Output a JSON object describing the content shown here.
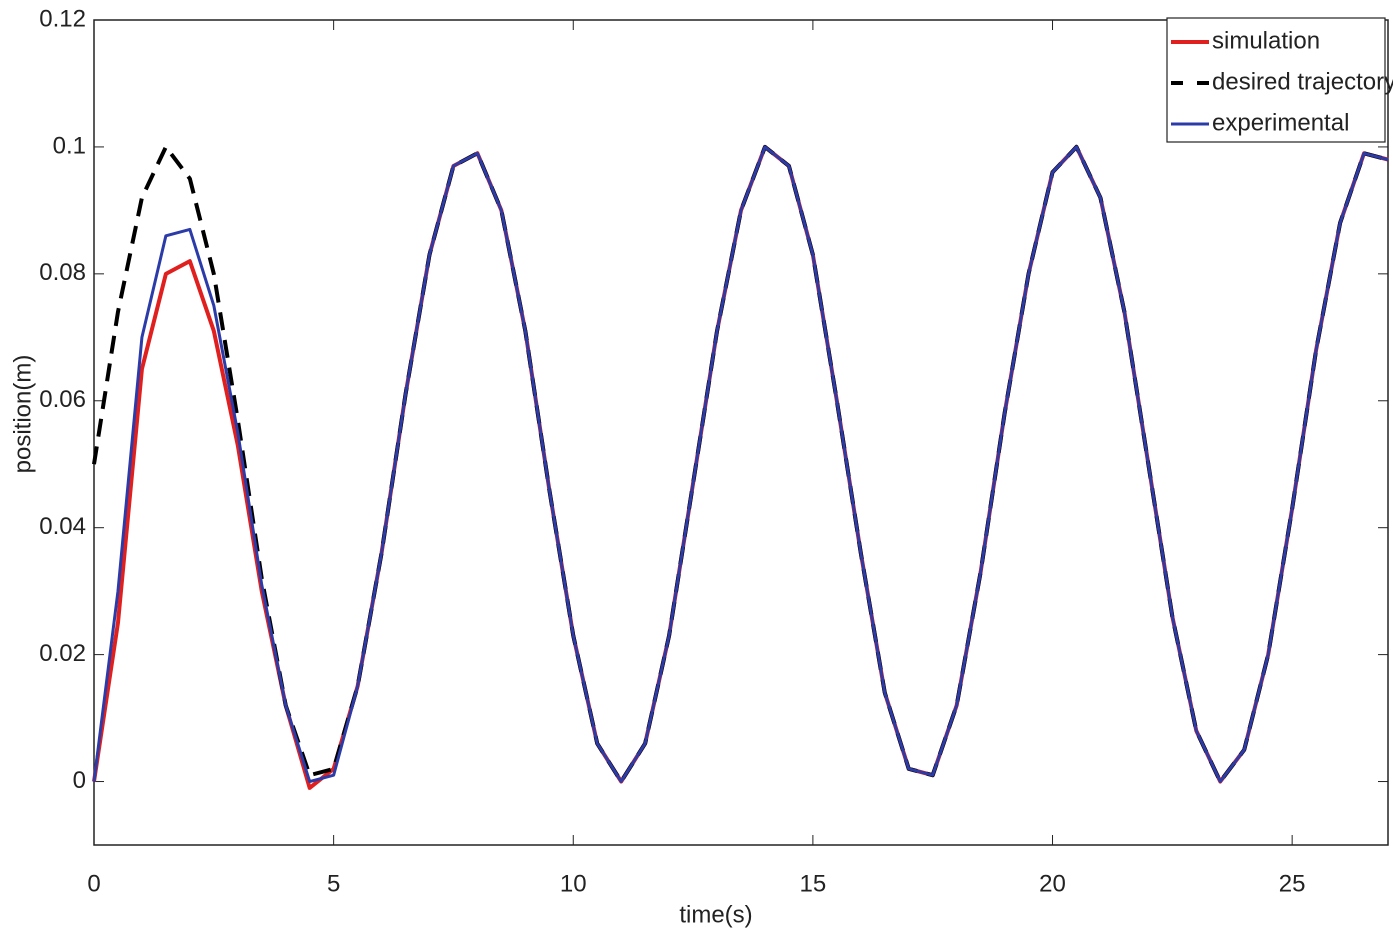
{
  "chart_data": {
    "type": "line",
    "x_label": "time(s)",
    "y_label": "position(m)",
    "x": [
      0,
      0.5,
      1,
      1.5,
      2,
      2.5,
      3,
      3.5,
      4,
      4.5,
      5,
      5.5,
      6,
      6.5,
      7,
      7.5,
      8,
      8.5,
      9,
      9.5,
      10,
      10.5,
      11,
      11.5,
      12,
      12.5,
      13,
      13.5,
      14,
      14.5,
      15,
      15.5,
      16,
      16.5,
      17,
      17.5,
      18,
      18.5,
      19,
      19.5,
      20,
      20.5,
      21,
      21.5,
      22,
      22.5,
      23,
      23.5,
      24,
      24.5,
      25,
      25.5,
      26,
      26.5,
      27
    ],
    "series": [
      {
        "name": "simulation",
        "color": "#e0201f",
        "dash": false,
        "width": 4,
        "values": [
          0,
          0.025,
          0.065,
          0.08,
          0.082,
          0.071,
          0.053,
          0.03,
          0.012,
          -0.001,
          0.002,
          0.015,
          0.036,
          0.061,
          0.083,
          0.097,
          0.099,
          0.09,
          0.071,
          0.046,
          0.023,
          0.006,
          0.0,
          0.006,
          0.023,
          0.047,
          0.071,
          0.09,
          0.1,
          0.097,
          0.083,
          0.06,
          0.036,
          0.014,
          0.002,
          0.001,
          0.012,
          0.033,
          0.058,
          0.08,
          0.096,
          0.1,
          0.092,
          0.074,
          0.05,
          0.026,
          0.008,
          0.0,
          0.005,
          0.02,
          0.043,
          0.068,
          0.088,
          0.099,
          0.098
        ]
      },
      {
        "name": "desired trajectory",
        "color": "#000000",
        "dash": true,
        "width": 4,
        "values": [
          0.05,
          0.074,
          0.092,
          0.1,
          0.095,
          0.08,
          0.057,
          0.032,
          0.012,
          0.001,
          0.002,
          0.015,
          0.036,
          0.061,
          0.083,
          0.097,
          0.099,
          0.09,
          0.071,
          0.046,
          0.023,
          0.006,
          0.0,
          0.006,
          0.023,
          0.047,
          0.071,
          0.09,
          0.1,
          0.097,
          0.083,
          0.06,
          0.036,
          0.014,
          0.002,
          0.001,
          0.012,
          0.033,
          0.058,
          0.08,
          0.096,
          0.1,
          0.092,
          0.074,
          0.05,
          0.026,
          0.008,
          0.0,
          0.005,
          0.02,
          0.043,
          0.068,
          0.088,
          0.099,
          0.098
        ]
      },
      {
        "name": "experimental",
        "color": "#2b3ba8",
        "dash": false,
        "width": 3,
        "values": [
          0,
          0.03,
          0.07,
          0.086,
          0.087,
          0.075,
          0.055,
          0.031,
          0.012,
          0.0,
          0.001,
          0.015,
          0.036,
          0.061,
          0.083,
          0.097,
          0.099,
          0.09,
          0.071,
          0.046,
          0.023,
          0.006,
          0.0,
          0.006,
          0.023,
          0.047,
          0.071,
          0.09,
          0.1,
          0.097,
          0.083,
          0.06,
          0.036,
          0.014,
          0.002,
          0.001,
          0.012,
          0.033,
          0.058,
          0.08,
          0.096,
          0.1,
          0.092,
          0.074,
          0.05,
          0.026,
          0.008,
          0.0,
          0.005,
          0.02,
          0.043,
          0.068,
          0.088,
          0.099,
          0.098
        ]
      }
    ],
    "xlim": [
      0,
      27
    ],
    "ylim": [
      -0.01,
      0.12
    ],
    "xticks": [
      0,
      5,
      10,
      15,
      20,
      25
    ],
    "yticks": [
      0,
      0.02,
      0.04,
      0.06,
      0.08,
      0.1,
      0.12
    ],
    "grid": false,
    "legend": "upper right"
  }
}
